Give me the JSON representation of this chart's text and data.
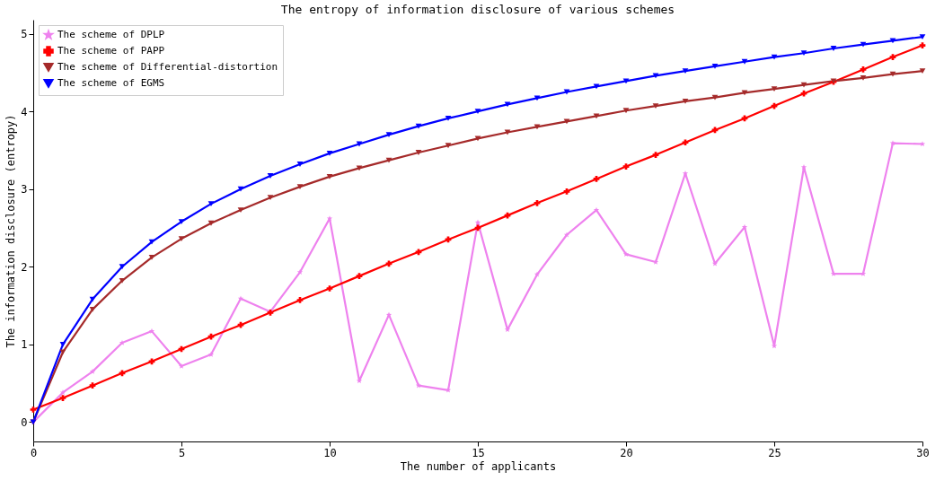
{
  "chart_data": {
    "type": "line",
    "title": "The entropy of information disclosure of various schemes",
    "xlabel": "The number of applicants",
    "ylabel": "The information disclosure (entropy)",
    "x": [
      0,
      1,
      2,
      3,
      4,
      5,
      6,
      7,
      8,
      9,
      10,
      11,
      12,
      13,
      14,
      15,
      16,
      17,
      18,
      19,
      20,
      21,
      22,
      23,
      24,
      25,
      26,
      27,
      28,
      29,
      30
    ],
    "series": [
      {
        "name": "The scheme of DPLP",
        "color": "#ee82ee",
        "marker": "star",
        "values": [
          0,
          0.38,
          0.65,
          1.02,
          1.17,
          0.72,
          0.87,
          1.59,
          1.42,
          1.93,
          2.62,
          0.53,
          1.38,
          0.47,
          0.41,
          2.57,
          1.19,
          1.9,
          2.41,
          2.73,
          2.16,
          2.06,
          3.2,
          2.04,
          2.51,
          0.98,
          3.28,
          1.91,
          1.91,
          3.59,
          3.58
        ]
      },
      {
        "name": "The scheme of PAPP",
        "color": "#ff0000",
        "marker": "cross",
        "values": [
          0.16,
          0.31,
          0.47,
          0.63,
          0.78,
          0.94,
          1.1,
          1.25,
          1.41,
          1.57,
          1.72,
          1.88,
          2.04,
          2.19,
          2.35,
          2.5,
          2.66,
          2.82,
          2.97,
          3.13,
          3.29,
          3.44,
          3.6,
          3.76,
          3.91,
          4.07,
          4.23,
          4.38,
          4.54,
          4.7,
          4.85
        ]
      },
      {
        "name": "The scheme of Differential-distortion",
        "color": "#a52a2a",
        "marker": "triangle",
        "values": [
          0,
          0.9,
          1.45,
          1.82,
          2.12,
          2.36,
          2.56,
          2.73,
          2.89,
          3.03,
          3.16,
          3.27,
          3.37,
          3.47,
          3.56,
          3.65,
          3.73,
          3.8,
          3.87,
          3.94,
          4.01,
          4.07,
          4.13,
          4.18,
          4.24,
          4.29,
          4.34,
          4.39,
          4.43,
          4.48,
          4.52
        ]
      },
      {
        "name": "The scheme of EGMS",
        "color": "#0000ff",
        "marker": "triangle",
        "values": [
          0,
          1.0,
          1.58,
          2.0,
          2.32,
          2.58,
          2.81,
          3.0,
          3.17,
          3.32,
          3.46,
          3.58,
          3.7,
          3.81,
          3.91,
          4.0,
          4.09,
          4.17,
          4.25,
          4.32,
          4.39,
          4.46,
          4.52,
          4.58,
          4.64,
          4.7,
          4.75,
          4.81,
          4.86,
          4.91,
          4.96
        ]
      }
    ],
    "xlim": [
      0,
      30
    ],
    "xticks": [
      0,
      5,
      10,
      15,
      20,
      25,
      30
    ],
    "ylim": [
      -0.25,
      5.18
    ],
    "yticks": [
      0,
      1,
      2,
      3,
      4,
      5
    ],
    "grid": false,
    "legend": "top left",
    "line_style": "solid"
  }
}
